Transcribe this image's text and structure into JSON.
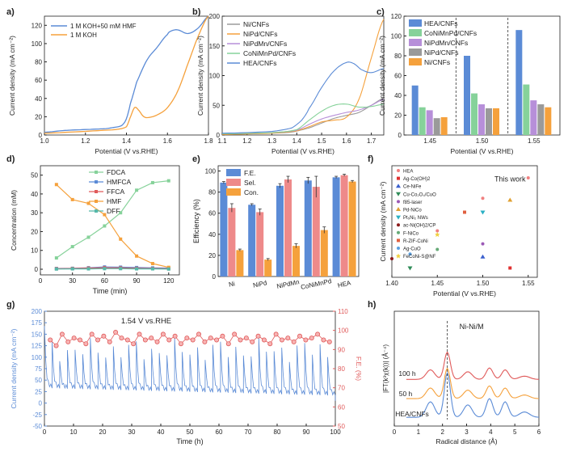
{
  "figure": {
    "colors": {
      "blue": "#5b8bd6",
      "orange": "#f5a13c",
      "green": "#86d29a",
      "purple": "#b78fd9",
      "gray": "#9a9a9a",
      "red": "#e05b5b",
      "teal": "#56b8a9",
      "pink": "#ee8a8a"
    }
  },
  "chart_data": [
    {
      "id": "a",
      "panel_label": "a)",
      "type": "line",
      "xlabel": "Potential (V vs.RHE)",
      "ylabel": "Current density (mA cm⁻²)",
      "xlim": [
        1.0,
        1.8
      ],
      "ylim": [
        0,
        130
      ],
      "xticks": [
        "1.0",
        "1.2",
        "1.4",
        "1.6",
        "1.8"
      ],
      "yticks": [
        "0",
        "20",
        "40",
        "60",
        "80",
        "100",
        "120"
      ],
      "series": [
        {
          "name": "1 M KOH+50 mM HMF",
          "color": "#5b8bd6",
          "x": [
            1.0,
            1.1,
            1.2,
            1.3,
            1.36,
            1.38,
            1.4,
            1.42,
            1.45,
            1.5,
            1.55,
            1.6,
            1.62,
            1.65,
            1.7,
            1.75,
            1.8
          ],
          "y": [
            3,
            5,
            6,
            7,
            9,
            11,
            18,
            35,
            58,
            82,
            96,
            110,
            114,
            115,
            111,
            117,
            130
          ]
        },
        {
          "name": "1 M KOH",
          "color": "#f5a13c",
          "x": [
            1.0,
            1.2,
            1.35,
            1.4,
            1.42,
            1.44,
            1.46,
            1.48,
            1.5,
            1.55,
            1.6,
            1.65,
            1.7,
            1.75,
            1.8
          ],
          "y": [
            2,
            4,
            6,
            9,
            20,
            30,
            27,
            21,
            19,
            22,
            30,
            48,
            78,
            108,
            130
          ]
        }
      ]
    },
    {
      "id": "b",
      "panel_label": "b)",
      "type": "line",
      "xlabel": "Potential (V vs.RHE)",
      "ylabel": "Current density (mA cm⁻²)",
      "xlim": [
        1.1,
        1.75
      ],
      "ylim": [
        0,
        200
      ],
      "xticks": [
        "1.1",
        "1.2",
        "1.3",
        "1.4",
        "1.5",
        "1.6",
        "1.7"
      ],
      "yticks": [
        "0",
        "50",
        "100",
        "150",
        "200"
      ],
      "series": [
        {
          "name": "Ni/CNFs",
          "color": "#9a9a9a",
          "x": [
            1.1,
            1.3,
            1.38,
            1.45,
            1.5,
            1.55,
            1.6,
            1.65,
            1.7,
            1.75
          ],
          "y": [
            2,
            3,
            5,
            12,
            20,
            28,
            33,
            38,
            50,
            62
          ]
        },
        {
          "name": "NiPd/CNFs",
          "color": "#f5a13c",
          "x": [
            1.1,
            1.3,
            1.4,
            1.45,
            1.5,
            1.55,
            1.6,
            1.65,
            1.7,
            1.75
          ],
          "y": [
            1,
            3,
            7,
            14,
            22,
            25,
            30,
            60,
            130,
            195
          ]
        },
        {
          "name": "NiPdMn/CNFs",
          "color": "#b78fd9",
          "x": [
            1.1,
            1.3,
            1.4,
            1.45,
            1.5,
            1.55,
            1.6,
            1.65,
            1.7,
            1.75
          ],
          "y": [
            2,
            4,
            8,
            18,
            27,
            33,
            38,
            42,
            50,
            60
          ]
        },
        {
          "name": "CoNiMnPd/CNFs",
          "color": "#86d29a",
          "x": [
            1.1,
            1.3,
            1.4,
            1.45,
            1.5,
            1.55,
            1.6,
            1.65,
            1.7,
            1.75
          ],
          "y": [
            2,
            4,
            9,
            25,
            40,
            50,
            52,
            47,
            48,
            52
          ]
        },
        {
          "name": "HEA/CNFs",
          "color": "#5b8bd6",
          "x": [
            1.1,
            1.3,
            1.38,
            1.42,
            1.45,
            1.5,
            1.55,
            1.6,
            1.63,
            1.66,
            1.7,
            1.75
          ],
          "y": [
            3,
            6,
            12,
            25,
            45,
            80,
            108,
            122,
            120,
            110,
            105,
            112
          ]
        }
      ]
    },
    {
      "id": "c",
      "panel_label": "c)",
      "type": "bar",
      "xlabel": "Potential (V vs.RHE)",
      "ylabel": "Current density (mA cm⁻²)",
      "ylim": [
        0,
        120
      ],
      "categories": [
        "1.45",
        "1.50",
        "1.55"
      ],
      "yticks": [
        "0",
        "20",
        "40",
        "60",
        "80",
        "100",
        "120"
      ],
      "series": [
        {
          "name": "HEA/CNFs",
          "color": "#5b8bd6",
          "values": [
            50,
            80,
            106
          ]
        },
        {
          "name": "CoNiMnPd/CNFs",
          "color": "#86d29a",
          "values": [
            28,
            42,
            51
          ]
        },
        {
          "name": "NiPdMn/CNFs",
          "color": "#b78fd9",
          "values": [
            25,
            31,
            35
          ]
        },
        {
          "name": "NiPd/CNFs",
          "color": "#9a9a9a",
          "values": [
            17,
            27,
            31
          ]
        },
        {
          "name": "Ni/CNFs",
          "color": "#f5a13c",
          "values": [
            18,
            27,
            28
          ]
        }
      ]
    },
    {
      "id": "d",
      "panel_label": "d)",
      "type": "line",
      "xlabel": "Time (min)",
      "ylabel": "Concentration (mM)",
      "xlim": [
        0,
        130
      ],
      "ylim": [
        -3,
        55
      ],
      "xticks": [
        "0",
        "30",
        "60",
        "90",
        "120"
      ],
      "yticks": [
        "0",
        "10",
        "20",
        "30",
        "40",
        "50"
      ],
      "x": [
        15,
        30,
        45,
        60,
        75,
        90,
        105,
        120
      ],
      "series": [
        {
          "name": "FDCA",
          "color": "#86d29a",
          "values": [
            6,
            12,
            17,
            23,
            30,
            42,
            46,
            47
          ]
        },
        {
          "name": "HMFCA",
          "color": "#5b8bd6",
          "values": [
            0.4,
            0.5,
            0.8,
            1.2,
            1.1,
            0.9,
            0.7,
            0.6
          ]
        },
        {
          "name": "FFCA",
          "color": "#e05b5b",
          "values": [
            0.3,
            0.4,
            0.6,
            0.8,
            0.7,
            0.5,
            0.4,
            0.3
          ]
        },
        {
          "name": "HMF",
          "color": "#f5a13c",
          "values": [
            45,
            37,
            35,
            29,
            16,
            7,
            3,
            1
          ]
        },
        {
          "name": "DFF",
          "color": "#56b8a9",
          "values": [
            0.1,
            0.2,
            0.2,
            0.3,
            0.3,
            0.2,
            0.2,
            0.1
          ]
        }
      ]
    },
    {
      "id": "e",
      "panel_label": "e)",
      "type": "bar",
      "ylabel": "Efficiency (%)",
      "ylim": [
        0,
        105
      ],
      "categories": [
        "Ni",
        "NiPd",
        "NiPdMn",
        "CoNiMnPd",
        "HEA"
      ],
      "yticks": [
        "0",
        "20",
        "40",
        "60",
        "80",
        "100"
      ],
      "series": [
        {
          "name": "F.E.",
          "color": "#5b8bd6",
          "values": [
            89,
            68,
            86,
            91,
            94
          ],
          "errors": [
            1,
            1,
            2,
            3,
            1
          ]
        },
        {
          "name": "Sel.",
          "color": "#ee8a8a",
          "values": [
            65,
            61,
            92,
            85,
            96
          ],
          "errors": [
            4,
            3,
            3,
            10,
            1
          ]
        },
        {
          "name": "Con.",
          "color": "#f5a13c",
          "values": [
            25,
            16,
            29,
            44,
            90
          ],
          "errors": [
            1,
            1,
            2,
            3,
            1
          ]
        }
      ]
    },
    {
      "id": "f",
      "panel_label": "f)",
      "type": "scatter",
      "xlabel": "Potential (V vs.RHE)",
      "ylabel": "Current density (mA cm⁻²)",
      "xlim": [
        1.4,
        1.56
      ],
      "ylim": [
        0,
        120
      ],
      "xticks": [
        "1.40",
        "1.45",
        "1.50",
        "1.55"
      ],
      "annotation": "This work",
      "series": [
        {
          "name": "HEA",
          "color": "#f08080",
          "marker": "circle",
          "points": [
            [
              1.45,
              50
            ],
            [
              1.5,
              85
            ],
            [
              1.55,
              107
            ]
          ]
        },
        {
          "name": "Ag-Co(OH)2",
          "color": "#e03030",
          "marker": "square",
          "points": [
            [
              1.53,
              10
            ]
          ]
        },
        {
          "name": "Ce-NiFe",
          "color": "#3a5fcd",
          "marker": "triangle",
          "points": [
            [
              1.5,
              22
            ]
          ]
        },
        {
          "name": "Cu-Co2O4/CuO",
          "color": "#2e8b57",
          "marker": "triangle-down",
          "points": [
            [
              1.42,
              10
            ]
          ]
        },
        {
          "name": "f85-laser",
          "color": "#9b59b6",
          "marker": "circle",
          "points": [
            [
              1.5,
              36
            ]
          ]
        },
        {
          "name": "Pd-NiCo",
          "color": "#e0a030",
          "marker": "triangle",
          "points": [
            [
              1.53,
              83
            ]
          ]
        },
        {
          "name": "Pt5Ni2 NWs",
          "color": "#2ab0c4",
          "marker": "triangle-down",
          "points": [
            [
              1.5,
              70
            ]
          ]
        },
        {
          "name": "ac-Ni(OH)2/CP",
          "color": "#8b1a1a",
          "marker": "circle",
          "points": [
            [
              1.4,
              20
            ]
          ]
        },
        {
          "name": "F-NiCo",
          "color": "#66aa77",
          "marker": "circle",
          "points": [
            [
              1.45,
              30
            ]
          ]
        },
        {
          "name": "R-ZIF-CoNi",
          "color": "#e06040",
          "marker": "square",
          "points": [
            [
              1.48,
              70
            ]
          ]
        },
        {
          "name": "Ag-CuO",
          "color": "#5aa0e0",
          "marker": "circle",
          "points": [
            [
              1.42,
              25
            ]
          ]
        },
        {
          "name": "FeCoNi-S@NF",
          "color": "#f0d040",
          "marker": "star",
          "points": [
            [
              1.45,
              46
            ]
          ]
        }
      ],
      "legend_labels": [
        "HEA",
        "Ag-Co(OH)2",
        "Ce-NiFe",
        "Cu-Co₂O₄/CuO",
        "f85-laser",
        "Pd-NiCo",
        "Pt₅Ni₂ NWs",
        "ac-Ni(OH)2/CP",
        "F-NiCo",
        "R-ZIF-CoNi",
        "Ag-CuO",
        "FeCoNi-S@NF"
      ]
    },
    {
      "id": "g",
      "panel_label": "g)",
      "type": "line",
      "xlabel": "Time (h)",
      "ylabel": "Current density (mA cm⁻²)",
      "ylabel_right": "F.E. (%)",
      "annotation": "1.54 V vs.RHE",
      "xlim": [
        0,
        100
      ],
      "ylim": [
        -50,
        200
      ],
      "ylim_right": [
        50,
        110
      ],
      "xticks": [
        "0",
        "10",
        "20",
        "30",
        "40",
        "50",
        "60",
        "70",
        "80",
        "90",
        "100"
      ],
      "yticks": [
        "-50",
        "-25",
        "0",
        "25",
        "50",
        "75",
        "100",
        "125",
        "150",
        "175",
        "200"
      ],
      "yticks_right": [
        "50",
        "60",
        "70",
        "80",
        "90",
        "100",
        "110"
      ],
      "cycles": {
        "count": 38,
        "peak_mean": 115,
        "floor_start": 36,
        "floor_end": 20,
        "first_peak": 168
      },
      "fe_series": {
        "name": "F.E.",
        "color": "#e05b5b",
        "values": [
          95,
          92,
          98,
          94,
          96,
          95,
          93,
          98,
          95,
          97,
          94,
          99,
          96,
          95,
          93,
          98,
          95,
          96,
          94,
          98,
          95,
          97,
          93,
          96,
          95,
          98,
          94,
          96,
          95,
          97,
          93,
          98,
          95,
          96,
          94,
          97,
          95,
          93,
          98,
          95,
          96,
          94,
          97,
          95,
          96,
          98,
          95,
          94
        ]
      }
    },
    {
      "id": "h",
      "panel_label": "h)",
      "type": "line",
      "xlabel": "Radical distance (Å)",
      "ylabel": "|FT(k³χ(k))| (Å⁻⁴)",
      "xlim": [
        0,
        6
      ],
      "xticks": [
        "0",
        "1",
        "2",
        "3",
        "4",
        "5",
        "6"
      ],
      "annotation": "Ni-Ni/M",
      "series": [
        {
          "name": "HEA/CNFs",
          "color": "#5b8bd6",
          "offset": 0
        },
        {
          "name": "50 h",
          "color": "#f5a13c",
          "offset": 1
        },
        {
          "name": "100 h",
          "color": "#e05b5b",
          "offset": 2
        }
      ]
    }
  ]
}
